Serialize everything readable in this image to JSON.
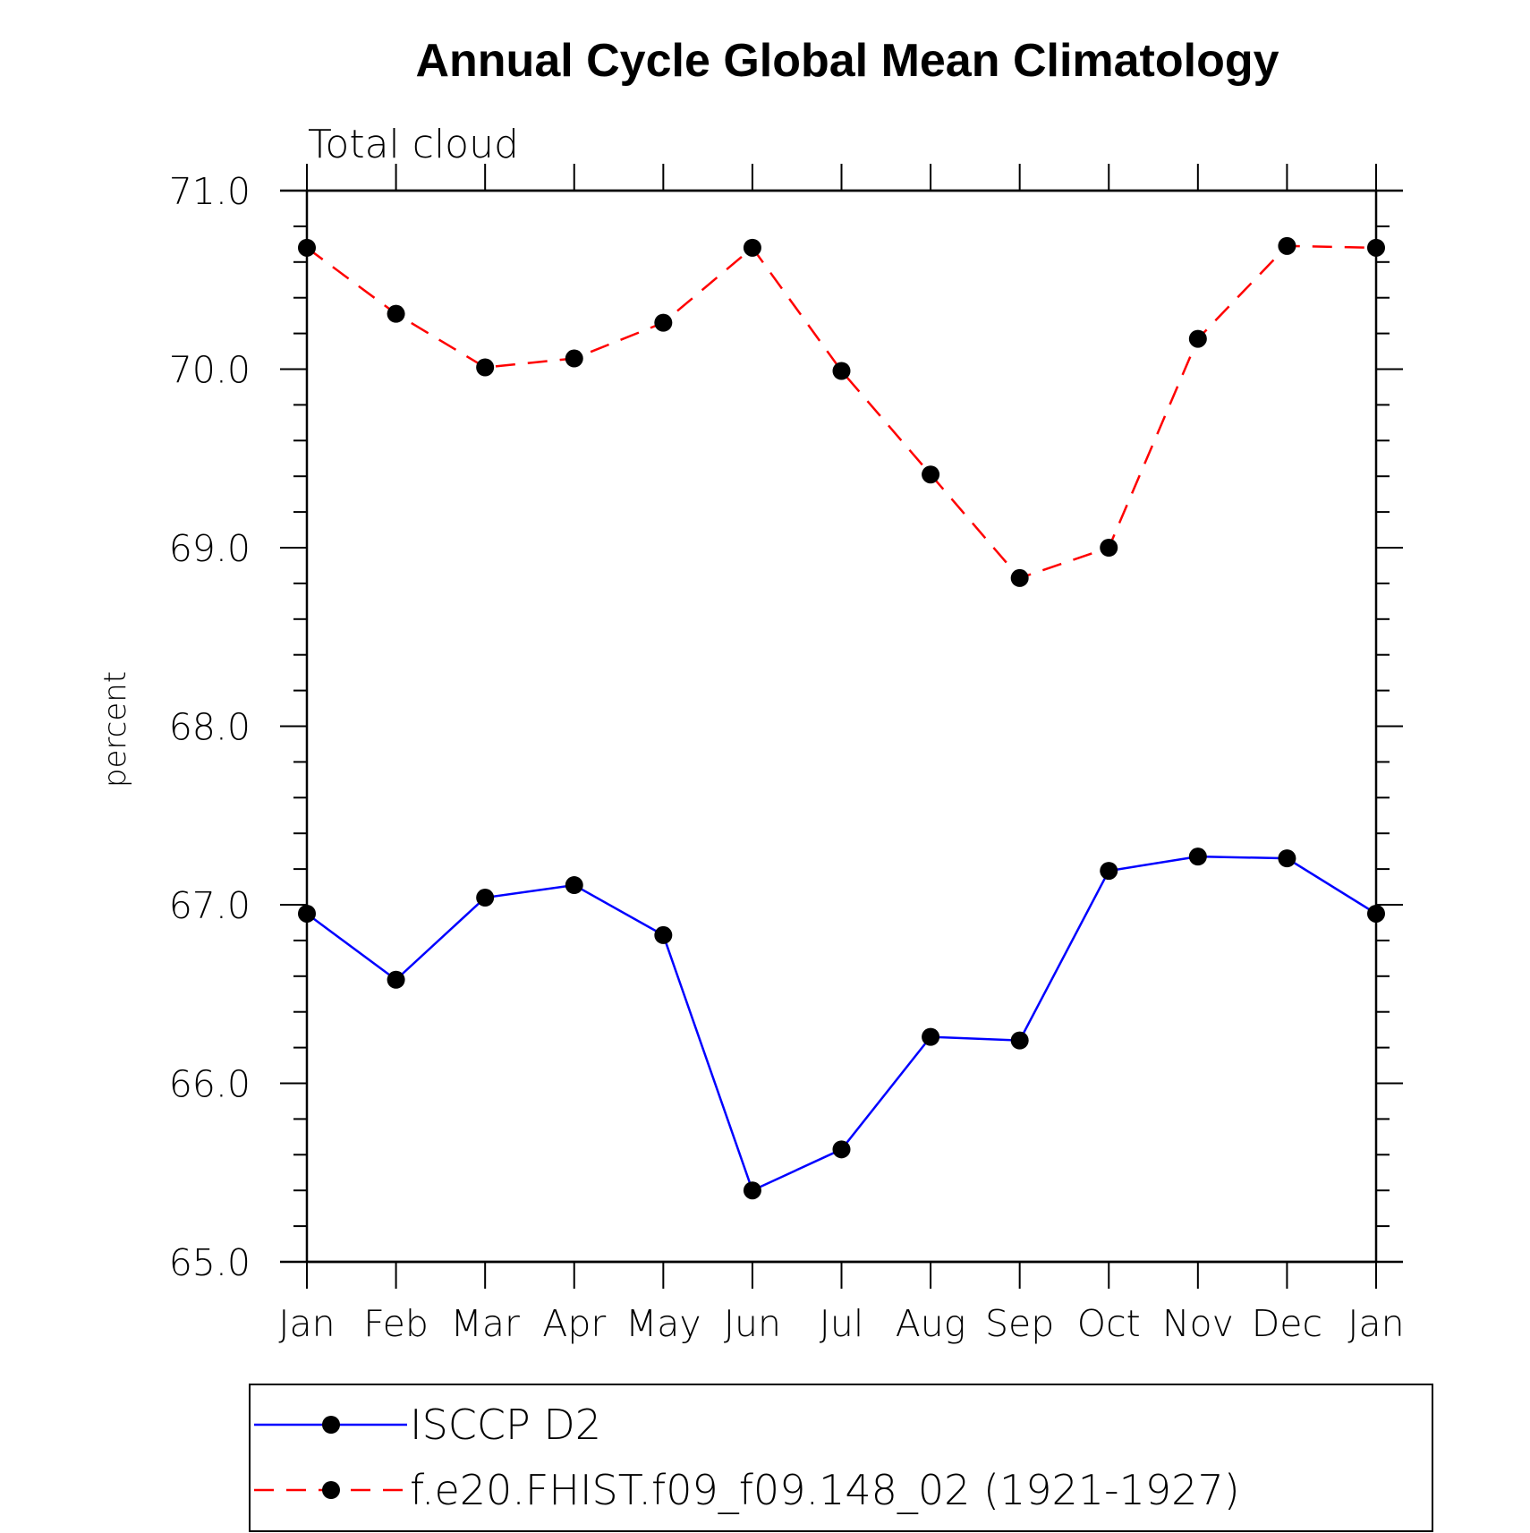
{
  "chart_data": {
    "type": "line",
    "title": "Annual Cycle Global Mean Climatology",
    "subtitle": "Total cloud",
    "xlabel": "",
    "ylabel": "percent",
    "categories": [
      "Jan",
      "Feb",
      "Mar",
      "Apr",
      "May",
      "Jun",
      "Jul",
      "Aug",
      "Sep",
      "Oct",
      "Nov",
      "Dec",
      "Jan"
    ],
    "ylim": [
      65.0,
      71.0
    ],
    "yticks": [
      "65.0",
      "66.0",
      "67.0",
      "68.0",
      "69.0",
      "70.0",
      "71.0"
    ],
    "legend_position": "bottom",
    "series": [
      {
        "name": "ISCCP D2",
        "color": "#0000ff",
        "dash": "solid",
        "values": [
          66.95,
          66.58,
          67.04,
          67.11,
          66.83,
          65.4,
          65.63,
          66.26,
          66.24,
          67.19,
          67.27,
          67.26,
          66.95
        ]
      },
      {
        "name": "f.e20.FHIST.f09_f09.148_02 (1921-1927)",
        "color": "#ff0000",
        "dash": "dashed",
        "values": [
          70.68,
          70.31,
          70.01,
          70.06,
          70.26,
          70.68,
          69.99,
          69.41,
          68.83,
          69.0,
          70.17,
          70.69,
          70.68
        ]
      }
    ]
  }
}
